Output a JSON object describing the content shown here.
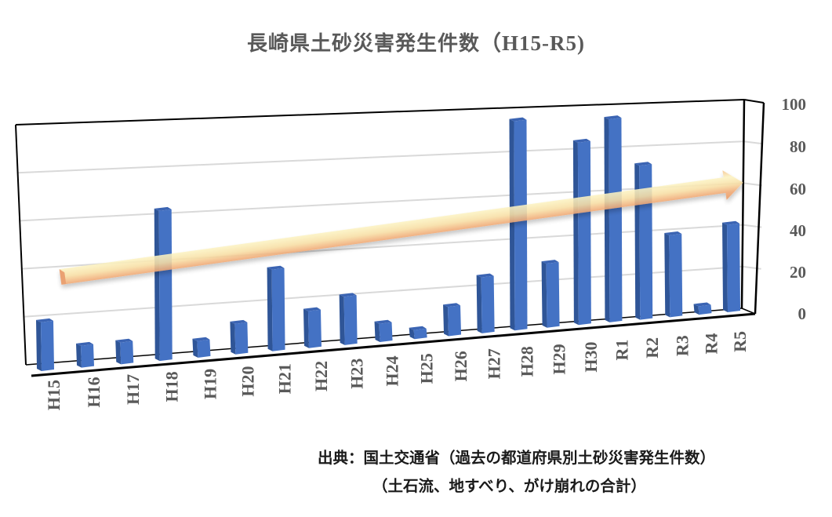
{
  "title": {
    "jp": "長崎県土砂災害発生件数",
    "range": "（H15-R5)"
  },
  "source": {
    "line1": "出典：国土交通省（過去の都道府県別土砂災害発生件数）",
    "line2": "（土石流、地すべり、がけ崩れの合計）"
  },
  "colors": {
    "bar_front": "#4472C4",
    "bar_side": "#2F5597",
    "bar_top": "#3B64B3",
    "axis_text": "#595959",
    "gridline": "#D9D9D9",
    "frame": "#000000",
    "arrow_light": "#FBEFB8",
    "arrow_dark": "#ED9E63"
  },
  "chart_data": {
    "type": "bar",
    "style": "3d-column",
    "title": "長崎県土砂災害発生件数（H15-R5)",
    "xlabel": "",
    "ylabel": "",
    "categories": [
      "H15",
      "H16",
      "H17",
      "H18",
      "H19",
      "H20",
      "H21",
      "H22",
      "H23",
      "H24",
      "H25",
      "H26",
      "H27",
      "H28",
      "H29",
      "H30",
      "R1",
      "R2",
      "R3",
      "R4",
      "R5"
    ],
    "values": [
      21,
      10,
      10,
      64,
      8,
      14,
      36,
      17,
      22,
      9,
      5,
      14,
      26,
      95,
      30,
      84,
      94,
      72,
      39,
      5,
      42
    ],
    "ylim": [
      0,
      100
    ],
    "yticks": [
      "0",
      "20",
      "40",
      "60",
      "80",
      "100"
    ],
    "y_axis_position": "right",
    "grid": true,
    "legend": null,
    "annotations": [
      {
        "type": "trend-arrow",
        "direction": "up-right",
        "from_category": "H15",
        "to_category": "R5",
        "from_value": 40,
        "to_value": 60
      }
    ],
    "source_note": "出典：国土交通省（過去の都道府県別土砂災害発生件数）（土石流、地すべり、がけ崩れの合計）"
  }
}
